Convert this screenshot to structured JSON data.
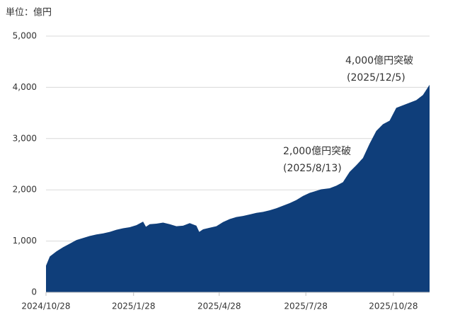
{
  "chart_data": {
    "type": "area",
    "unit_label": "単位：億円",
    "x": [
      "2024/10/28",
      "2024/11/1",
      "2024/11/8",
      "2024/11/15",
      "2024/11/22",
      "2024/11/29",
      "2024/12/6",
      "2024/12/13",
      "2024/12/20",
      "2024/12/27",
      "2025/1/3",
      "2025/1/10",
      "2025/1/17",
      "2025/1/24",
      "2025/1/31",
      "2025/2/7",
      "2025/2/10",
      "2025/2/14",
      "2025/2/21",
      "2025/2/28",
      "2025/3/7",
      "2025/3/14",
      "2025/3/21",
      "2025/3/28",
      "2025/4/4",
      "2025/4/7",
      "2025/4/11",
      "2025/4/18",
      "2025/4/25",
      "2025/5/2",
      "2025/5/9",
      "2025/5/16",
      "2025/5/23",
      "2025/5/30",
      "2025/6/6",
      "2025/6/13",
      "2025/6/20",
      "2025/6/27",
      "2025/7/4",
      "2025/7/11",
      "2025/7/18",
      "2025/7/25",
      "2025/8/1",
      "2025/8/8",
      "2025/8/13",
      "2025/8/22",
      "2025/8/29",
      "2025/9/5",
      "2025/9/12",
      "2025/9/19",
      "2025/9/26",
      "2025/10/3",
      "2025/10/10",
      "2025/10/17",
      "2025/10/24",
      "2025/10/31",
      "2025/11/7",
      "2025/11/14",
      "2025/11/21",
      "2025/11/28",
      "2025/12/5"
    ],
    "values": [
      520,
      700,
      800,
      880,
      950,
      1020,
      1060,
      1100,
      1130,
      1150,
      1180,
      1220,
      1250,
      1270,
      1310,
      1380,
      1280,
      1330,
      1340,
      1360,
      1330,
      1290,
      1300,
      1350,
      1300,
      1180,
      1230,
      1260,
      1290,
      1370,
      1430,
      1470,
      1490,
      1520,
      1550,
      1570,
      1600,
      1640,
      1690,
      1740,
      1800,
      1880,
      1940,
      1980,
      2010,
      2030,
      2080,
      2150,
      2350,
      2480,
      2620,
      2900,
      3150,
      3280,
      3350,
      3600,
      3650,
      3700,
      3750,
      3850,
      4050
    ],
    "color": "#0f3e7a",
    "xlim": [
      "2024/10/28",
      "2025/12/5"
    ],
    "xticks": [
      "2024/10/28",
      "2025/1/28",
      "2025/4/28",
      "2025/7/28",
      "2025/10/28"
    ],
    "ylim": [
      0,
      5000
    ],
    "yticks": [
      0,
      {
        "value": 1000,
        "label": "1,000"
      },
      {
        "value": 2000,
        "label": "2,000"
      },
      {
        "value": 3000,
        "label": "3,000"
      },
      {
        "value": 4000,
        "label": "4,000"
      },
      {
        "value": 5000,
        "label": "5,000"
      }
    ],
    "grid": true,
    "annotations": [
      {
        "text": "4,000億円突破",
        "date": "(2025/12/5)"
      },
      {
        "text": "2,000億円突破",
        "date": "(2025/8/13)"
      }
    ]
  }
}
